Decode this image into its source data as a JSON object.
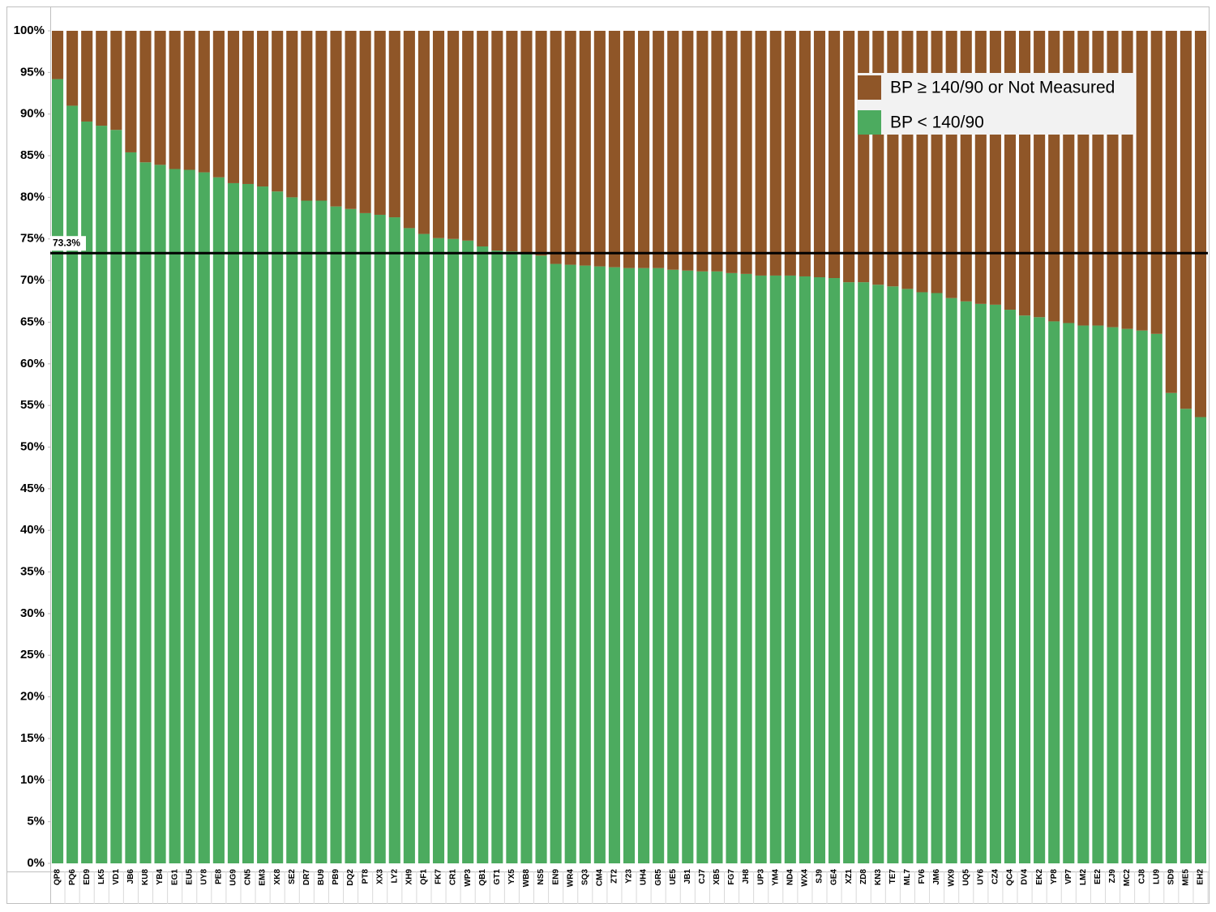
{
  "chart_data": {
    "type": "bar",
    "stacked": true,
    "categories": [
      "QP8",
      "PQ6",
      "ED9",
      "LK5",
      "VD1",
      "JB6",
      "KU8",
      "YB4",
      "EG1",
      "EU5",
      "UY8",
      "PE8",
      "UG9",
      "CN5",
      "EM3",
      "XK8",
      "SE2",
      "DR7",
      "BU9",
      "PB9",
      "DQ2",
      "PT8",
      "XX3",
      "LY2",
      "XH9",
      "QF1",
      "FK7",
      "CR1",
      "WP3",
      "QB1",
      "GT1",
      "YX5",
      "WB8",
      "NS5",
      "EN9",
      "WR4",
      "SQ3",
      "CM4",
      "ZT2",
      "Y23",
      "UH4",
      "GR5",
      "UE5",
      "JB1",
      "CJ7",
      "XB5",
      "FG7",
      "JH8",
      "UP3",
      "YM4",
      "ND4",
      "WX4",
      "SJ9",
      "GE4",
      "XZ1",
      "ZD8",
      "KN3",
      "TE7",
      "ML7",
      "FV6",
      "JM6",
      "WX9",
      "UQ5",
      "UY6",
      "CZ4",
      "QC4",
      "DV4",
      "EK2",
      "YP8",
      "VP7",
      "LM2",
      "EE2",
      "ZJ9",
      "MC2",
      "CJ8",
      "LU9",
      "SD9",
      "ME5",
      "EH2"
    ],
    "series": [
      {
        "name": "BP < 140/90",
        "color": "#4cab5f",
        "values": [
          94.2,
          91.0,
          89.1,
          88.6,
          88.1,
          85.4,
          84.2,
          83.9,
          83.4,
          83.3,
          83.0,
          82.4,
          81.7,
          81.6,
          81.3,
          80.7,
          80.0,
          79.6,
          79.6,
          78.9,
          78.6,
          78.1,
          77.9,
          77.6,
          76.3,
          75.6,
          75.1,
          75.0,
          74.8,
          74.1,
          73.6,
          73.5,
          73.2,
          73.0,
          72.0,
          71.9,
          71.8,
          71.7,
          71.6,
          71.5,
          71.5,
          71.5,
          71.3,
          71.2,
          71.1,
          71.1,
          70.9,
          70.8,
          70.6,
          70.6,
          70.6,
          70.5,
          70.4,
          70.3,
          69.8,
          69.8,
          69.5,
          69.3,
          69.0,
          68.6,
          68.5,
          67.9,
          67.5,
          67.2,
          67.1,
          66.5,
          65.8,
          65.6,
          65.1,
          64.9,
          64.6,
          64.6,
          64.4,
          64.2,
          64.0,
          63.6,
          56.5,
          54.6,
          53.6
        ]
      },
      {
        "name": "BP ≥ 140/90 or Not Measured",
        "color": "#8f5628",
        "values": [
          5.8,
          9.0,
          10.9,
          11.4,
          11.9,
          14.6,
          15.8,
          16.1,
          16.6,
          16.7,
          17.0,
          17.6,
          18.3,
          18.4,
          18.7,
          19.3,
          20.0,
          20.4,
          20.4,
          21.1,
          21.4,
          21.9,
          22.1,
          22.4,
          23.7,
          24.4,
          24.9,
          25.0,
          25.2,
          25.9,
          26.4,
          26.5,
          26.8,
          27.0,
          28.0,
          28.1,
          28.2,
          28.3,
          28.4,
          28.5,
          28.5,
          28.5,
          28.7,
          28.8,
          28.9,
          28.9,
          29.1,
          29.2,
          29.4,
          29.4,
          29.4,
          29.5,
          29.6,
          29.7,
          30.2,
          30.2,
          30.5,
          30.7,
          31.0,
          31.4,
          31.5,
          32.1,
          32.5,
          32.8,
          32.9,
          33.5,
          34.2,
          34.4,
          34.9,
          35.1,
          35.4,
          35.4,
          35.6,
          35.8,
          36.0,
          36.4,
          43.5,
          45.4,
          46.4
        ]
      }
    ],
    "ylim": [
      0,
      100
    ],
    "yticks": [
      {
        "value": 0,
        "label": "0%"
      },
      {
        "value": 5,
        "label": "5%"
      },
      {
        "value": 10,
        "label": "10%"
      },
      {
        "value": 15,
        "label": "15%"
      },
      {
        "value": 20,
        "label": "20%"
      },
      {
        "value": 25,
        "label": "25%"
      },
      {
        "value": 30,
        "label": "30%"
      },
      {
        "value": 35,
        "label": "35%"
      },
      {
        "value": 40,
        "label": "40%"
      },
      {
        "value": 45,
        "label": "45%"
      },
      {
        "value": 50,
        "label": "50%"
      },
      {
        "value": 55,
        "label": "55%"
      },
      {
        "value": 60,
        "label": "60%"
      },
      {
        "value": 65,
        "label": "65%"
      },
      {
        "value": 70,
        "label": "70%"
      },
      {
        "value": 75,
        "label": "75%"
      },
      {
        "value": 80,
        "label": "80%"
      },
      {
        "value": 85,
        "label": "85%"
      },
      {
        "value": 90,
        "label": "90%"
      },
      {
        "value": 95,
        "label": "95%"
      },
      {
        "value": 100,
        "label": "100%"
      }
    ],
    "reference_line": {
      "value": 73.3,
      "label": "73.3%",
      "color": "#000000"
    },
    "legend": "upper right"
  }
}
